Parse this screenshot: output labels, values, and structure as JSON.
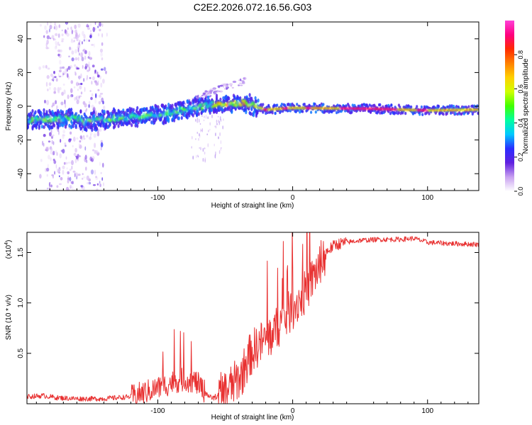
{
  "title": "C2E2.2026.072.16.56.G03",
  "chart_data": [
    {
      "type": "heatmap",
      "xlabel": "Height of straight line (km)",
      "ylabel": "Frequency (Hz)",
      "xlim": [
        -197,
        138
      ],
      "ylim": [
        -50,
        50
      ],
      "xticks": [
        -100,
        0,
        100
      ],
      "xtick_labels": [
        "-100",
        "0",
        "100"
      ],
      "yticks": [
        -40,
        -20,
        0,
        20,
        40
      ],
      "ytick_labels": [
        "-40",
        "-20",
        "0",
        "20",
        "40"
      ],
      "ridge": [
        {
          "x": -197,
          "y": -8
        },
        {
          "x": -160,
          "y": -7
        },
        {
          "x": -155,
          "y": -9
        },
        {
          "x": -100,
          "y": -5
        },
        {
          "x": -60,
          "y": 1
        },
        {
          "x": -45,
          "y": 2
        },
        {
          "x": -35,
          "y": 2
        },
        {
          "x": -28,
          "y": 0
        },
        {
          "x": -20,
          "y": -2
        },
        {
          "x": 0,
          "y": -1
        },
        {
          "x": 60,
          "y": -1.5
        },
        {
          "x": 100,
          "y": -2.5
        },
        {
          "x": 138,
          "y": -2
        }
      ],
      "colorbar": {
        "label": "Normalized spectral amplitude",
        "range": [
          0,
          1
        ],
        "ticks": [
          0.0,
          0.2,
          0.4,
          0.6,
          0.8
        ],
        "tick_labels": [
          "0.0",
          "0.2",
          "0.4",
          "0.6",
          "0.8"
        ],
        "colors": [
          "#ffffff",
          "#c8a0f0",
          "#6020e0",
          "#2a2cff",
          "#00c8ff",
          "#00ffa0",
          "#40ff00",
          "#d0ff00",
          "#ffd000",
          "#ff8000",
          "#ff2a00",
          "#ff0080",
          "#ff40d8"
        ]
      }
    },
    {
      "type": "line",
      "xlabel": "Height of straight line (km)",
      "ylabel": "SNR (10 * v/v)",
      "multiplier": "(x10",
      "multiplier_exp": "4",
      "multiplier_close": ")",
      "xlim": [
        -197,
        138
      ],
      "ylim": [
        0,
        1.7
      ],
      "xticks": [
        -100,
        0,
        100
      ],
      "xtick_labels": [
        "-100",
        "0",
        "100"
      ],
      "yticks": [
        0.5,
        1.0,
        1.5
      ],
      "ytick_labels": [
        "0.5",
        "1.0",
        "1.5"
      ],
      "color": "#e83030",
      "series": [
        {
          "name": "SNR",
          "x": [
            -197,
            -185,
            -175,
            -160,
            -140,
            -120,
            -108,
            -95,
            -88,
            -80,
            -72,
            -65,
            -60,
            -52,
            -45,
            -38,
            -33,
            -28,
            -22,
            -16,
            -10,
            -4,
            2,
            8,
            14,
            20,
            26,
            32,
            40,
            50,
            65,
            80,
            90,
            100,
            115,
            138
          ],
          "y": [
            0.07,
            0.08,
            0.06,
            0.05,
            0.05,
            0.07,
            0.12,
            0.18,
            0.22,
            0.24,
            0.22,
            0.12,
            0.05,
            0.1,
            0.18,
            0.28,
            0.45,
            0.55,
            0.62,
            0.68,
            0.78,
            0.88,
            0.98,
            1.08,
            1.22,
            1.38,
            1.52,
            1.58,
            1.6,
            1.62,
            1.63,
            1.63,
            1.64,
            1.6,
            1.59,
            1.58
          ]
        }
      ]
    }
  ]
}
